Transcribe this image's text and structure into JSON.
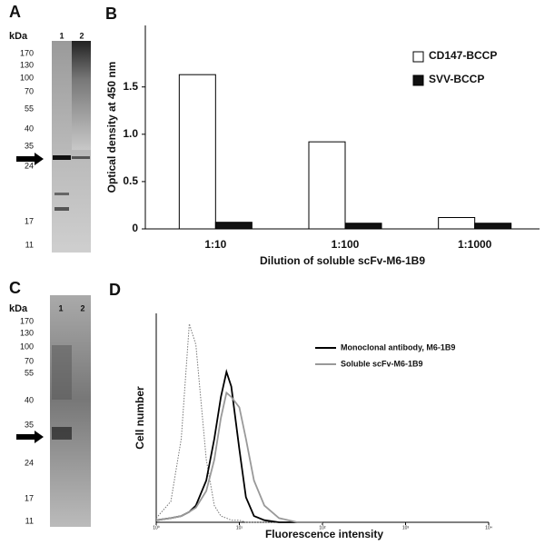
{
  "panels": {
    "a": {
      "letter": "A",
      "unit": "kDa",
      "lanes": [
        "1",
        "2"
      ],
      "markers": [
        "170",
        "130",
        "100",
        "70",
        "55",
        "40",
        "35",
        "24",
        "17",
        "11"
      ]
    },
    "c": {
      "letter": "C",
      "unit": "kDa",
      "lanes": [
        "1",
        "2"
      ],
      "markers": [
        "170",
        "130",
        "100",
        "70",
        "55",
        "40",
        "35",
        "24",
        "17",
        "11"
      ]
    }
  },
  "chart_data": [
    {
      "type": "bar",
      "label": "B",
      "xlabel": "Dilution of soluble scFv-M6-1B9",
      "ylabel": "Optical density at 450 nm",
      "categories": [
        "1:10",
        "1:100",
        "1:1000"
      ],
      "series": [
        {
          "name": "CD147-BCCP",
          "color": "#ffffff",
          "values": [
            1.63,
            0.92,
            0.12
          ]
        },
        {
          "name": "SVV-BCCP",
          "color": "#111111",
          "values": [
            0.07,
            0.06,
            0.06
          ]
        }
      ],
      "ylim": [
        0,
        2.15
      ],
      "yticks": [
        0,
        0.5,
        {
          "value": 1,
          "label": "1.0"
        },
        1.5
      ],
      "legend": "upper right"
    },
    {
      "type": "line",
      "label": "D",
      "xlabel": "Fluorescence intensity",
      "ylabel": "Cell number",
      "xscale": "log",
      "x": [
        1,
        1.5,
        2,
        2.5,
        3,
        4,
        5,
        6,
        7,
        8,
        10,
        12,
        15,
        20,
        30,
        50,
        100
      ],
      "series": [
        {
          "color": "#777777",
          "style": "dotted",
          "values": [
            2,
            10,
            40,
            95,
            85,
            30,
            8,
            3,
            2,
            1,
            1,
            0,
            0,
            0,
            0,
            0,
            0
          ]
        },
        {
          "name": "Monoclonal antibody, M6-1B9",
          "color": "#000000",
          "style": "solid",
          "values": [
            1,
            2,
            3,
            5,
            8,
            20,
            40,
            60,
            72,
            65,
            35,
            12,
            3,
            1,
            0,
            0,
            0
          ]
        },
        {
          "name": "Soluble scFv-M6-1B9",
          "color": "#999999",
          "style": "solid",
          "values": [
            1,
            2,
            3,
            5,
            7,
            15,
            30,
            50,
            62,
            60,
            55,
            40,
            20,
            8,
            2,
            0,
            0
          ]
        }
      ],
      "xlim": [
        1,
        10000
      ],
      "ylim": [
        0,
        100
      ],
      "xticks": [
        {
          "value": 1,
          "label": "10⁰"
        },
        {
          "value": 10,
          "label": "10¹"
        },
        {
          "value": 100,
          "label": "10²"
        },
        {
          "value": 1000,
          "label": "10³"
        },
        {
          "value": 10000,
          "label": "10⁴"
        }
      ]
    }
  ]
}
